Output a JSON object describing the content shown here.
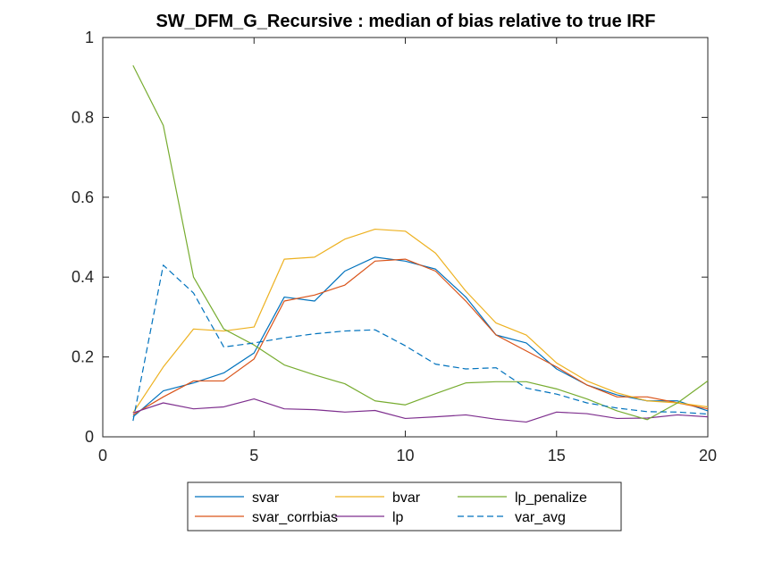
{
  "chart_data": {
    "type": "line",
    "title": "SW_DFM_G_Recursive : median of bias relative to true IRF",
    "xlabel": "",
    "ylabel": "",
    "xlim": [
      0,
      20
    ],
    "ylim": [
      0,
      1
    ],
    "xticks": [
      0,
      5,
      10,
      15,
      20
    ],
    "yticks": [
      0,
      0.2,
      0.4,
      0.6,
      0.8,
      1
    ],
    "x": [
      1,
      2,
      3,
      4,
      5,
      6,
      7,
      8,
      9,
      10,
      11,
      12,
      13,
      14,
      15,
      16,
      17,
      18,
      19,
      20
    ],
    "grid": false,
    "legend_position": "bottom-outside",
    "series": [
      {
        "name": "svar",
        "color": "#0072BD",
        "dash": "solid",
        "values": [
          0.05,
          0.115,
          0.135,
          0.16,
          0.21,
          0.35,
          0.34,
          0.415,
          0.45,
          0.44,
          0.42,
          0.35,
          0.255,
          0.235,
          0.17,
          0.13,
          0.105,
          0.09,
          0.09,
          0.065
        ]
      },
      {
        "name": "svar_corrbias",
        "color": "#D95319",
        "dash": "solid",
        "values": [
          0.055,
          0.1,
          0.14,
          0.14,
          0.195,
          0.34,
          0.355,
          0.38,
          0.44,
          0.445,
          0.415,
          0.34,
          0.255,
          0.215,
          0.175,
          0.13,
          0.1,
          0.1,
          0.085,
          0.07
        ]
      },
      {
        "name": "bvar",
        "color": "#EDB120",
        "dash": "solid",
        "values": [
          0.06,
          0.175,
          0.27,
          0.265,
          0.275,
          0.445,
          0.45,
          0.495,
          0.52,
          0.515,
          0.46,
          0.365,
          0.285,
          0.255,
          0.185,
          0.14,
          0.11,
          0.09,
          0.085,
          0.075
        ]
      },
      {
        "name": "lp",
        "color": "#7E2F8E",
        "dash": "solid",
        "values": [
          0.06,
          0.085,
          0.07,
          0.075,
          0.095,
          0.07,
          0.068,
          0.062,
          0.066,
          0.046,
          0.05,
          0.055,
          0.044,
          0.037,
          0.062,
          0.058,
          0.046,
          0.047,
          0.055,
          0.05
        ]
      },
      {
        "name": "lp_penalize",
        "color": "#77AC30",
        "dash": "solid",
        "values": [
          0.93,
          0.78,
          0.4,
          0.27,
          0.23,
          0.18,
          0.155,
          0.133,
          0.09,
          0.08,
          0.108,
          0.135,
          0.138,
          0.138,
          0.12,
          0.095,
          0.065,
          0.043,
          0.085,
          0.14
        ]
      },
      {
        "name": "var_avg",
        "color": "#0072BD",
        "dash": "dashed",
        "values": [
          0.04,
          0.43,
          0.36,
          0.225,
          0.235,
          0.248,
          0.258,
          0.265,
          0.268,
          0.228,
          0.182,
          0.17,
          0.173,
          0.122,
          0.107,
          0.085,
          0.072,
          0.063,
          0.062,
          0.057
        ]
      }
    ],
    "legend": {
      "columns": 3,
      "order": [
        "svar",
        "bvar",
        "lp_penalize",
        "svar_corrbias",
        "lp",
        "var_avg"
      ]
    }
  }
}
